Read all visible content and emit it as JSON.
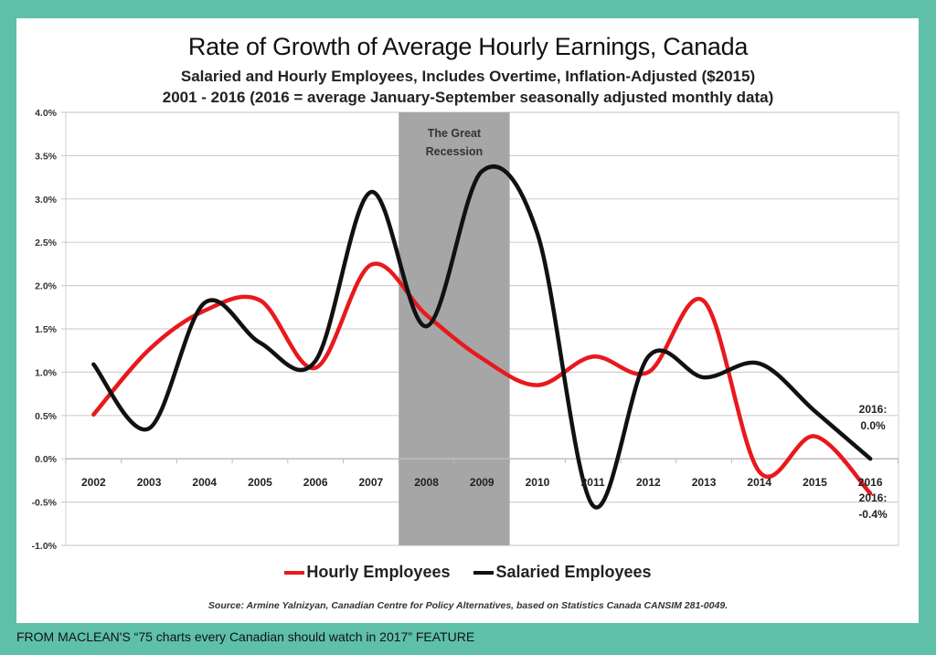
{
  "colors": {
    "frame": "#5fc0aa",
    "hourly": "#e8191d",
    "salaried": "#111111",
    "recession": "#a6a6a6",
    "grid": "#d0d0d0"
  },
  "caption": "FROM MACLEAN'S “75 charts every Canadian should watch in 2017” FEATURE",
  "chart_data": {
    "type": "line",
    "title": "Rate of Growth of Average Hourly Earnings, Canada",
    "subtitle": "Salaried and Hourly Employees, Includes Overtime, Inflation-Adjusted ($2015)",
    "subtitle2": "2001 - 2016 (2016 = average January-September seasonally adjusted monthly data)",
    "xlabel": "",
    "ylabel": "",
    "categories": [
      "2002",
      "2003",
      "2004",
      "2005",
      "2006",
      "2007",
      "2008",
      "2009",
      "2010",
      "2011",
      "2012",
      "2013",
      "2014",
      "2015",
      "2016"
    ],
    "series": [
      {
        "name": "Hourly Employees",
        "color": "#e8191d",
        "values": [
          0.51,
          1.26,
          1.71,
          1.83,
          1.05,
          2.24,
          1.66,
          1.16,
          0.85,
          1.18,
          1.0,
          1.82,
          -0.15,
          0.26,
          -0.4
        ]
      },
      {
        "name": "Salaried Employees",
        "color": "#111111",
        "values": [
          1.09,
          0.35,
          1.8,
          1.34,
          1.13,
          3.08,
          1.53,
          3.32,
          2.6,
          -0.54,
          1.18,
          0.94,
          1.1,
          0.55,
          0.0
        ]
      }
    ],
    "ylim": [
      -1.0,
      4.0
    ],
    "yticks": [
      "4.0%",
      "3.5%",
      "3.0%",
      "2.5%",
      "2.0%",
      "1.5%",
      "1.0%",
      "0.5%",
      "0.0%",
      "-0.5%",
      "-1.0%"
    ],
    "ytick_values": [
      4.0,
      3.5,
      3.0,
      2.5,
      2.0,
      1.5,
      1.0,
      0.5,
      0.0,
      -0.5,
      -1.0
    ],
    "grid": true,
    "legend_position": "bottom",
    "shaded_region": {
      "label_line1": "The Great",
      "label_line2": "Recession",
      "from_category": "2008",
      "to_category": "2009"
    },
    "annotations": [
      {
        "line1": "2016:",
        "line2": "0.0%",
        "series": "Salaried Employees"
      },
      {
        "line1": "2016:",
        "line2": "-0.4%",
        "series": "Hourly Employees"
      }
    ],
    "source": "Source: Armine Yalnizyan,  Canadian Centre for Policy Alternatives, based on Statistics Canada  CANSIM 281-0049."
  }
}
